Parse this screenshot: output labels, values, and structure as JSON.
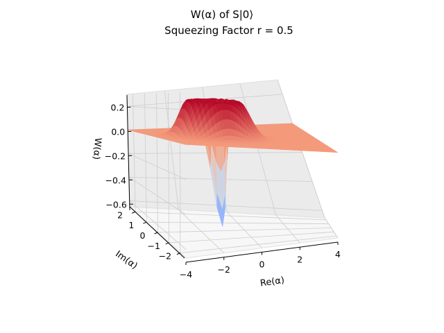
{
  "chart_data": {
    "type": "surface",
    "title_line1": "W(α) of S|0⟩",
    "title_line2": "Squeezing Factor r = 0.5",
    "xlabel": "Re(α)",
    "ylabel": "Im(α)",
    "zlabel": "W(α)",
    "xlim": [
      -4,
      4
    ],
    "ylim": [
      -2.5,
      2.5
    ],
    "zlim": [
      -0.65,
      0.3
    ],
    "xticks": [
      -4,
      -2,
      0,
      2,
      4
    ],
    "yticks": [
      -2,
      -1,
      0,
      1,
      2
    ],
    "zticks": [
      0.2,
      0.0,
      -0.2,
      -0.4,
      -0.6
    ],
    "xtick_labels": [
      "−4",
      "−2",
      "0",
      "2",
      "4"
    ],
    "ytick_labels": [
      "−2",
      "−1",
      "0",
      "1",
      "2"
    ],
    "ztick_labels": [
      "0.2",
      "0.0",
      "−0.2",
      "−0.4",
      "−0.6"
    ],
    "colormap": "coolwarm",
    "colors": {
      "low": "#3b4cc0",
      "mid": "#dddddd",
      "high": "#b40426"
    },
    "surface": {
      "flat_level": 0.0,
      "ring_peak_value": 0.26,
      "ring_radius": 1.0,
      "center_min_value": -0.63,
      "center": [
        -1.0,
        0.0
      ]
    },
    "view": {
      "elev": 15,
      "azim": -105
    },
    "grid": true
  }
}
